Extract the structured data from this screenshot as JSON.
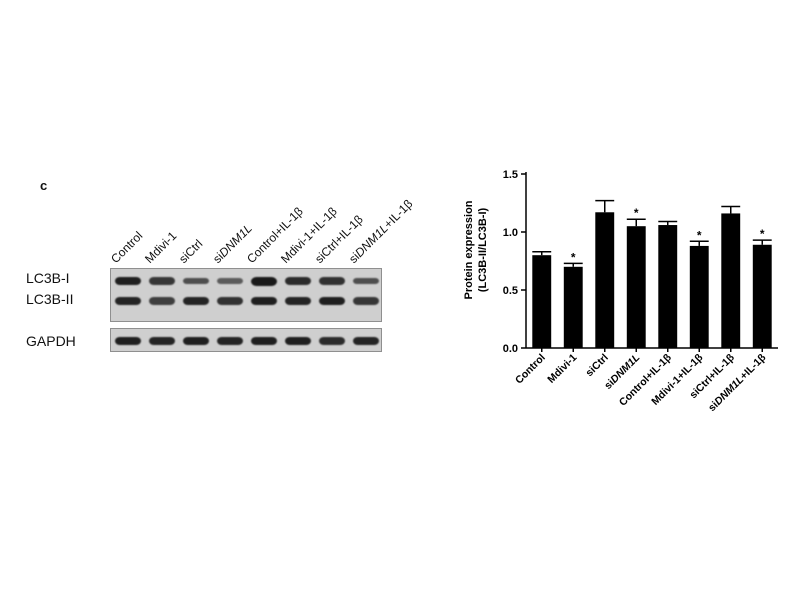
{
  "panel_label": "c",
  "blot": {
    "lanes": [
      {
        "pre": "Control",
        "em": "",
        "post": ""
      },
      {
        "pre": "Mdivi-1",
        "em": "",
        "post": ""
      },
      {
        "pre": "siCtrl",
        "em": "",
        "post": ""
      },
      {
        "pre": "si",
        "em": "DNM1L",
        "post": ""
      },
      {
        "pre": "Control+IL-1β",
        "em": "",
        "post": ""
      },
      {
        "pre": "Mdivi-1+IL-1β",
        "em": "",
        "post": ""
      },
      {
        "pre": "siCtrl+IL-1β",
        "em": "",
        "post": ""
      },
      {
        "pre": "si",
        "em": "DNM1L",
        "post": "+IL-1β"
      }
    ],
    "rows": [
      {
        "label": "LC3B-I",
        "intensity": [
          0.95,
          0.75,
          0.55,
          0.45,
          1.0,
          0.85,
          0.8,
          0.55
        ]
      },
      {
        "label": "LC3B-II",
        "intensity": [
          0.9,
          0.7,
          0.9,
          0.8,
          0.95,
          0.9,
          0.95,
          0.75
        ]
      },
      {
        "label": "GAPDH",
        "intensity": [
          0.95,
          0.9,
          0.95,
          0.9,
          0.95,
          0.95,
          0.85,
          0.9
        ]
      }
    ]
  },
  "chart_data": {
    "type": "bar",
    "categories": [
      {
        "pre": "Control",
        "em": "",
        "post": ""
      },
      {
        "pre": "Mdivi-1",
        "em": "",
        "post": ""
      },
      {
        "pre": "siCtrl",
        "em": "",
        "post": ""
      },
      {
        "pre": "si",
        "em": "DNM1L",
        "post": ""
      },
      {
        "pre": "Control+IL-1β",
        "em": "",
        "post": ""
      },
      {
        "pre": "Mdivi-1+IL-1β",
        "em": "",
        "post": ""
      },
      {
        "pre": "siCtrl+IL-1β",
        "em": "",
        "post": ""
      },
      {
        "pre": "si",
        "em": "DNM1L",
        "post": "+IL-1β"
      }
    ],
    "values": [
      0.8,
      0.7,
      1.17,
      1.05,
      1.06,
      0.88,
      1.16,
      0.89
    ],
    "errors": [
      0.03,
      0.03,
      0.1,
      0.06,
      0.03,
      0.04,
      0.06,
      0.04
    ],
    "significance": [
      "",
      "*",
      "",
      "*",
      "",
      "*",
      "",
      "*"
    ],
    "ylabel_line1": "Protein expression",
    "ylabel_line2": "(LC3B-II/LC3B-I)",
    "ylim": [
      0,
      1.5
    ],
    "yticks": [
      "0.0",
      "0.5",
      "1.0",
      "1.5"
    ],
    "bar_color": "#000000"
  }
}
